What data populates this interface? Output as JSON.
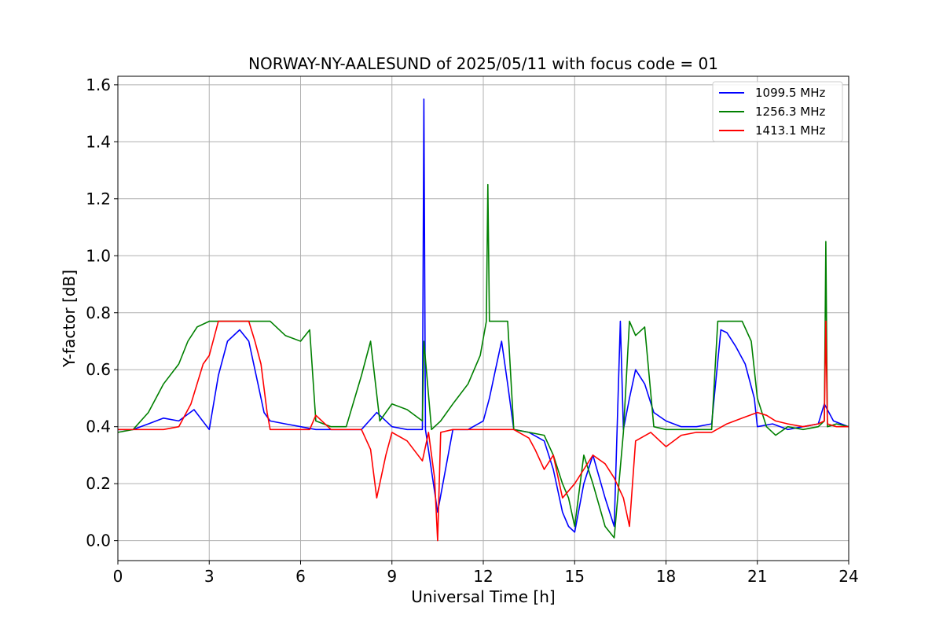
{
  "chart_data": {
    "type": "line",
    "title": "NORWAY-NY-AALESUND of 2025/05/11 with focus code = 01",
    "xlabel": "Universal Time [h]",
    "ylabel": "Y-factor [dB]",
    "xlim": [
      0,
      24
    ],
    "ylim": [
      -0.07,
      1.63
    ],
    "xticks": [
      0,
      3,
      6,
      9,
      12,
      15,
      18,
      21,
      24
    ],
    "yticks": [
      0.0,
      0.2,
      0.4,
      0.6,
      0.8,
      1.0,
      1.2,
      1.4,
      1.6
    ],
    "xtick_labels": [
      "0",
      "3",
      "6",
      "9",
      "12",
      "15",
      "18",
      "21",
      "24"
    ],
    "ytick_labels": [
      "0.0",
      "0.2",
      "0.4",
      "0.6",
      "0.8",
      "1.0",
      "1.2",
      "1.4",
      "1.6"
    ],
    "grid": true,
    "legend": "top-right",
    "series": [
      {
        "name": "1099.5 MHz",
        "color": "#0000ff",
        "x": [
          0,
          0.5,
          1.0,
          1.5,
          2.0,
          2.5,
          3.0,
          3.3,
          3.6,
          4.0,
          4.3,
          4.6,
          4.8,
          5.0,
          5.5,
          6.0,
          6.5,
          7.0,
          7.5,
          8.0,
          8.5,
          9.0,
          9.5,
          10.0,
          10.05,
          10.1,
          10.5,
          11.0,
          11.5,
          12.0,
          12.2,
          12.4,
          12.6,
          12.8,
          13.0,
          13.5,
          14.0,
          14.3,
          14.6,
          14.8,
          15.0,
          15.3,
          15.6,
          16.0,
          16.3,
          16.5,
          16.6,
          16.8,
          17.0,
          17.3,
          17.6,
          18.0,
          18.5,
          19.0,
          19.5,
          19.8,
          20.0,
          20.3,
          20.6,
          20.9,
          21.0,
          21.5,
          22.0,
          22.5,
          23.0,
          23.2,
          23.5,
          24.0
        ],
        "y": [
          0.39,
          0.39,
          0.41,
          0.43,
          0.42,
          0.46,
          0.39,
          0.58,
          0.7,
          0.74,
          0.7,
          0.55,
          0.45,
          0.42,
          0.41,
          0.4,
          0.39,
          0.39,
          0.39,
          0.39,
          0.45,
          0.4,
          0.39,
          0.39,
          1.55,
          0.39,
          0.1,
          0.39,
          0.39,
          0.42,
          0.5,
          0.6,
          0.7,
          0.55,
          0.39,
          0.38,
          0.35,
          0.25,
          0.1,
          0.05,
          0.03,
          0.2,
          0.3,
          0.15,
          0.05,
          0.77,
          0.39,
          0.5,
          0.6,
          0.55,
          0.45,
          0.42,
          0.4,
          0.4,
          0.41,
          0.74,
          0.73,
          0.68,
          0.62,
          0.5,
          0.4,
          0.41,
          0.39,
          0.4,
          0.41,
          0.48,
          0.42,
          0.4
        ]
      },
      {
        "name": "1256.3 MHz",
        "color": "#008000",
        "x": [
          0,
          0.5,
          1.0,
          1.5,
          2.0,
          2.3,
          2.6,
          3.0,
          3.5,
          4.0,
          4.5,
          5.0,
          5.5,
          6.0,
          6.3,
          6.5,
          7.0,
          7.5,
          8.0,
          8.3,
          8.6,
          9.0,
          9.5,
          10.0,
          10.05,
          10.3,
          10.6,
          11.0,
          11.5,
          11.9,
          12.1,
          12.15,
          12.2,
          12.5,
          12.8,
          13.0,
          13.5,
          14.0,
          14.3,
          14.6,
          14.8,
          15.0,
          15.3,
          15.6,
          16.0,
          16.3,
          16.6,
          16.8,
          17.0,
          17.3,
          17.6,
          18.0,
          18.5,
          19.0,
          19.5,
          19.7,
          20.0,
          20.5,
          20.8,
          21.0,
          21.3,
          21.6,
          22.0,
          22.5,
          23.0,
          23.2,
          23.25,
          23.3,
          23.6,
          24.0
        ],
        "y": [
          0.38,
          0.39,
          0.45,
          0.55,
          0.62,
          0.7,
          0.75,
          0.77,
          0.77,
          0.77,
          0.77,
          0.77,
          0.72,
          0.7,
          0.74,
          0.42,
          0.4,
          0.4,
          0.58,
          0.7,
          0.42,
          0.48,
          0.46,
          0.42,
          0.7,
          0.39,
          0.42,
          0.48,
          0.55,
          0.65,
          0.77,
          1.25,
          0.77,
          0.77,
          0.77,
          0.39,
          0.38,
          0.37,
          0.3,
          0.2,
          0.15,
          0.05,
          0.3,
          0.2,
          0.05,
          0.01,
          0.38,
          0.77,
          0.72,
          0.75,
          0.4,
          0.39,
          0.39,
          0.39,
          0.39,
          0.77,
          0.77,
          0.77,
          0.7,
          0.5,
          0.4,
          0.37,
          0.4,
          0.39,
          0.4,
          0.42,
          1.05,
          0.4,
          0.41,
          0.4
        ]
      },
      {
        "name": "1413.1 MHz",
        "color": "#ff0000",
        "x": [
          0,
          0.5,
          1.0,
          1.5,
          2.0,
          2.4,
          2.8,
          3.0,
          3.3,
          3.6,
          4.0,
          4.3,
          4.5,
          4.7,
          4.9,
          5.0,
          5.5,
          6.0,
          6.3,
          6.5,
          7.0,
          7.5,
          8.0,
          8.3,
          8.5,
          8.8,
          9.0,
          9.5,
          10.0,
          10.2,
          10.4,
          10.5,
          10.6,
          11.0,
          11.5,
          12.0,
          12.5,
          13.0,
          13.5,
          13.7,
          14.0,
          14.3,
          14.6,
          15.0,
          15.3,
          15.6,
          16.0,
          16.3,
          16.6,
          16.8,
          17.0,
          17.5,
          18.0,
          18.5,
          19.0,
          19.5,
          20.0,
          20.5,
          21.0,
          21.3,
          21.6,
          22.0,
          22.5,
          23.0,
          23.2,
          23.25,
          23.3,
          23.6,
          24.0
        ],
        "y": [
          0.39,
          0.39,
          0.39,
          0.39,
          0.4,
          0.48,
          0.62,
          0.65,
          0.77,
          0.77,
          0.77,
          0.77,
          0.7,
          0.62,
          0.45,
          0.39,
          0.39,
          0.39,
          0.39,
          0.44,
          0.39,
          0.39,
          0.39,
          0.32,
          0.15,
          0.3,
          0.38,
          0.35,
          0.28,
          0.38,
          0.22,
          0.0,
          0.38,
          0.39,
          0.39,
          0.39,
          0.39,
          0.39,
          0.36,
          0.32,
          0.25,
          0.3,
          0.15,
          0.2,
          0.25,
          0.3,
          0.27,
          0.22,
          0.15,
          0.05,
          0.35,
          0.38,
          0.33,
          0.37,
          0.38,
          0.38,
          0.41,
          0.43,
          0.45,
          0.44,
          0.42,
          0.41,
          0.4,
          0.41,
          0.42,
          0.77,
          0.41,
          0.4,
          0.4
        ]
      }
    ]
  }
}
